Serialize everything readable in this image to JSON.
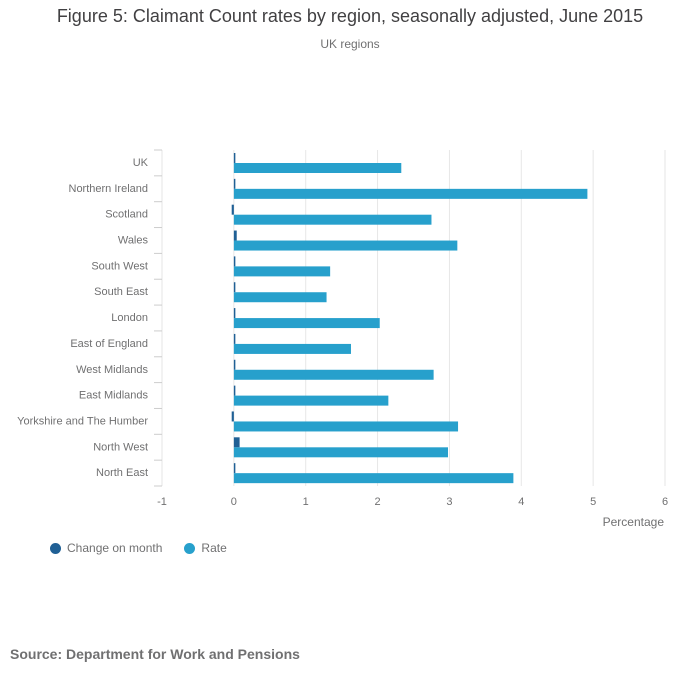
{
  "chart_data": {
    "type": "bar",
    "orientation": "horizontal",
    "title": "Figure 5: Claimant Count rates by region, seasonally adjusted, June 2015",
    "subtitle": "UK regions",
    "xlabel": "Percentage",
    "xlim": [
      -1,
      6
    ],
    "xticks": [
      "-1",
      "0",
      "1",
      "2",
      "3",
      "4",
      "5",
      "6"
    ],
    "grid": true,
    "legend_position": "bottom-left",
    "categories": [
      "UK",
      "Northern Ireland",
      "Scotland",
      "Wales",
      "South West",
      "South East",
      "London",
      "East of England",
      "West Midlands",
      "East Midlands",
      "Yorkshire and The Humber",
      "North West",
      "North East"
    ],
    "series": [
      {
        "name": "Change on month",
        "color": "#206095",
        "values": [
          0.0,
          0.0,
          -0.03,
          0.04,
          0.02,
          0.0,
          0.0,
          0.02,
          0.0,
          0.0,
          -0.03,
          0.08,
          0.02
        ]
      },
      {
        "name": "Rate",
        "color": "#27a0cc",
        "values": [
          2.33,
          4.92,
          2.75,
          3.11,
          1.34,
          1.29,
          2.03,
          1.63,
          2.78,
          2.15,
          3.12,
          2.98,
          3.89
        ]
      }
    ]
  },
  "source": "Source: Department for Work and Pensions"
}
